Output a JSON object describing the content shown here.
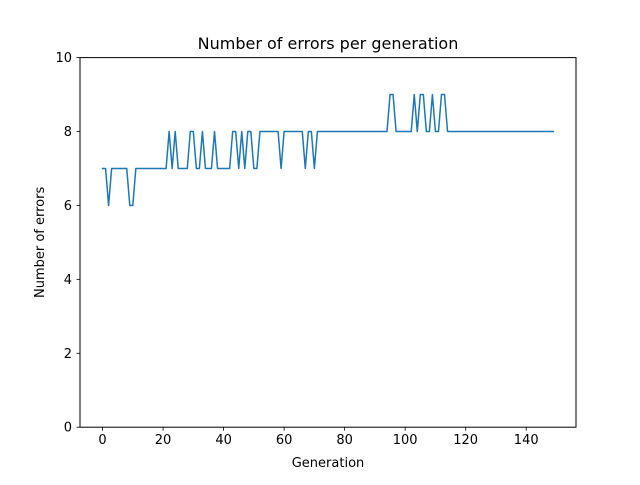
{
  "chart_data": {
    "type": "line",
    "title": "Number of errors per generation",
    "xlabel": "Generation",
    "ylabel": "Number of errors",
    "xlim": [
      -7.45,
      156.45
    ],
    "ylim": [
      0,
      10
    ],
    "xticks": [
      0,
      20,
      40,
      60,
      80,
      100,
      120,
      140
    ],
    "yticks": [
      0,
      2,
      4,
      6,
      8,
      10
    ],
    "grid": false,
    "legend": "none",
    "series": [
      {
        "color": "#1f77b4",
        "x": [
          0,
          1,
          2,
          3,
          4,
          5,
          6,
          7,
          8,
          9,
          10,
          11,
          12,
          13,
          14,
          15,
          16,
          17,
          18,
          19,
          20,
          21,
          22,
          23,
          24,
          25,
          26,
          27,
          28,
          29,
          30,
          31,
          32,
          33,
          34,
          35,
          36,
          37,
          38,
          39,
          40,
          41,
          42,
          43,
          44,
          45,
          46,
          47,
          48,
          49,
          50,
          51,
          52,
          53,
          54,
          55,
          56,
          57,
          58,
          59,
          60,
          61,
          62,
          63,
          64,
          65,
          66,
          67,
          68,
          69,
          70,
          71,
          72,
          73,
          74,
          75,
          76,
          77,
          78,
          79,
          80,
          81,
          82,
          83,
          84,
          85,
          86,
          87,
          88,
          89,
          90,
          91,
          92,
          93,
          94,
          95,
          96,
          97,
          98,
          99,
          100,
          101,
          102,
          103,
          104,
          105,
          106,
          107,
          108,
          109,
          110,
          111,
          112,
          113,
          114,
          115,
          116,
          117,
          118,
          119,
          120,
          121,
          122,
          123,
          124,
          125,
          126,
          127,
          128,
          129,
          130,
          131,
          132,
          133,
          134,
          135,
          136,
          137,
          138,
          139,
          140,
          141,
          142,
          143,
          144,
          145,
          146,
          147,
          148,
          149
        ],
        "y": [
          7,
          7,
          6,
          7,
          7,
          7,
          7,
          7,
          7,
          6,
          6,
          7,
          7,
          7,
          7,
          7,
          7,
          7,
          7,
          7,
          7,
          7,
          8,
          7,
          8,
          7,
          7,
          7,
          7,
          8,
          8,
          7,
          7,
          8,
          7,
          7,
          7,
          8,
          7,
          7,
          7,
          7,
          7,
          8,
          8,
          7,
          8,
          7,
          8,
          8,
          7,
          7,
          8,
          8,
          8,
          8,
          8,
          8,
          8,
          7,
          8,
          8,
          8,
          8,
          8,
          8,
          8,
          7,
          8,
          8,
          7,
          8,
          8,
          8,
          8,
          8,
          8,
          8,
          8,
          8,
          8,
          8,
          8,
          8,
          8,
          8,
          8,
          8,
          8,
          8,
          8,
          8,
          8,
          8,
          8,
          9,
          9,
          8,
          8,
          8,
          8,
          8,
          8,
          9,
          8,
          9,
          9,
          8,
          8,
          9,
          8,
          8,
          9,
          9,
          8,
          8,
          8,
          8,
          8,
          8,
          8,
          8,
          8,
          8,
          8,
          8,
          8,
          8,
          8,
          8,
          8,
          8,
          8,
          8,
          8,
          8,
          8,
          8,
          8,
          8,
          8,
          8,
          8,
          8,
          8,
          8,
          8,
          8,
          8,
          8
        ]
      }
    ]
  }
}
